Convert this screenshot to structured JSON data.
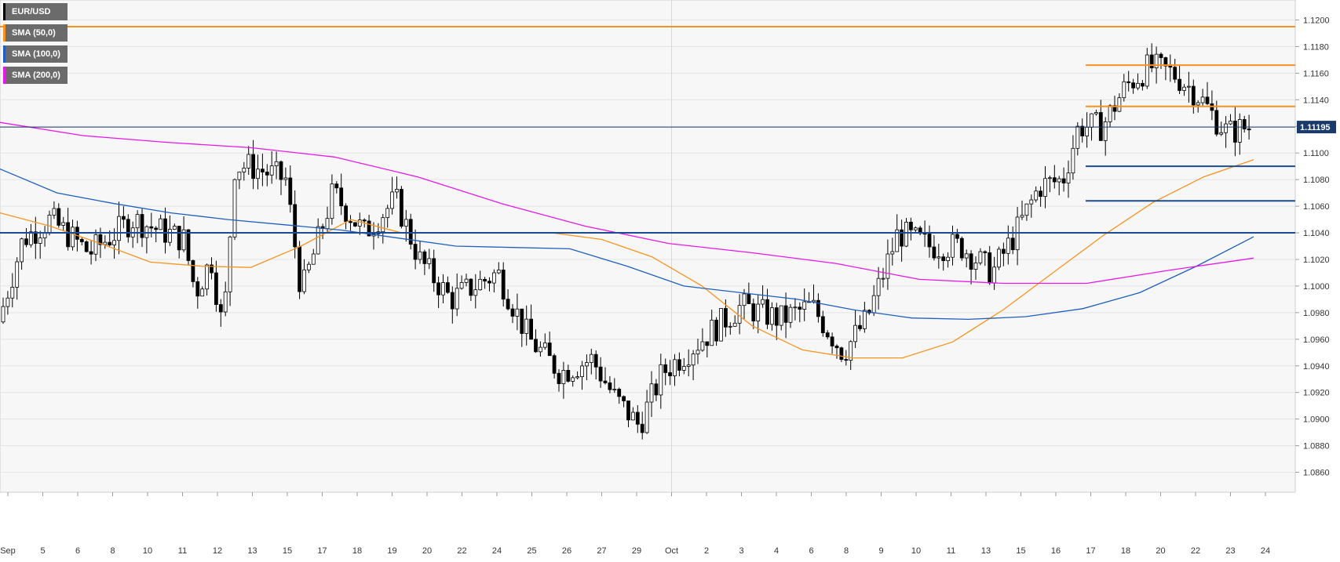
{
  "legend": {
    "symbol": "EUR/USD",
    "sma50": "SMA (50,0)",
    "sma100": "SMA (100,0)",
    "sma200": "SMA (200,0)"
  },
  "colors": {
    "background": "#f7f7f7",
    "grid": "#e4e4e4",
    "candle_up": "#ffffff",
    "candle_down": "#000000",
    "sma50": "#f7931e",
    "sma100": "#1f5fbf",
    "sma200": "#e619e6",
    "hline_orange": "#f7931e",
    "hline_blue": "#1a4c96",
    "price_marker": "#1a3a6b"
  },
  "price_marker": "1.11195",
  "chart_data": {
    "type": "candlestick",
    "title": "EUR/USD",
    "ylim": [
      1.0845,
      1.1215
    ],
    "y_ticks": [
      "1.0860",
      "1.0880",
      "1.0900",
      "1.0920",
      "1.0940",
      "1.0960",
      "1.0980",
      "1.1000",
      "1.1020",
      "1.1040",
      "1.1060",
      "1.1080",
      "1.1100",
      "1.1120",
      "1.1140",
      "1.1160",
      "1.1180",
      "1.1200"
    ],
    "x_ticks": [
      "Sep",
      "5",
      "6",
      "8",
      "10",
      "11",
      "12",
      "13",
      "15",
      "17",
      "18",
      "19",
      "20",
      "22",
      "24",
      "25",
      "26",
      "27",
      "29",
      "Oct",
      "2",
      "3",
      "4",
      "6",
      "8",
      "9",
      "10",
      "11",
      "13",
      "15",
      "16",
      "17",
      "18",
      "20",
      "22",
      "23",
      "24"
    ],
    "last_price": 1.11195,
    "horizontal_levels": [
      {
        "value": 1.1195,
        "style": "resistance",
        "span": "full"
      },
      {
        "value": 1.1166,
        "style": "resistance",
        "span": "recent"
      },
      {
        "value": 1.1135,
        "style": "resistance",
        "span": "recent"
      },
      {
        "value": 1.109,
        "style": "support",
        "span": "recent"
      },
      {
        "value": 1.1064,
        "style": "support",
        "span": "recent"
      },
      {
        "value": 1.104,
        "style": "support",
        "span": "full"
      }
    ],
    "series": [
      {
        "name": "SMA (50,0)",
        "values": [
          1.1055,
          1.1045,
          1.1032,
          1.1018,
          1.1015,
          1.1014,
          1.103,
          1.105,
          1.104,
          1.104,
          1.104,
          1.104,
          1.1035,
          1.1022,
          1.1,
          1.097,
          1.0952,
          1.0946,
          1.0946,
          1.0958,
          1.0982,
          1.101,
          1.1038,
          1.1063,
          1.1082,
          1.1095
        ]
      },
      {
        "name": "SMA (100,0)",
        "values": [
          1.1088,
          1.107,
          1.1062,
          1.1055,
          1.105,
          1.1046,
          1.1042,
          1.1036,
          1.103,
          1.1029,
          1.1028,
          1.1015,
          1.1,
          1.0995,
          1.099,
          1.0982,
          1.0976,
          1.0975,
          1.0977,
          1.0983,
          1.0995,
          1.1015,
          1.1037
        ]
      },
      {
        "name": "SMA (200,0)",
        "values": [
          1.1123,
          1.1113,
          1.1108,
          1.1104,
          1.1097,
          1.1082,
          1.1062,
          1.1045,
          1.1032,
          1.1025,
          1.1017,
          1.1005,
          1.1002,
          1.1002,
          1.1012,
          1.1021
        ]
      }
    ]
  }
}
